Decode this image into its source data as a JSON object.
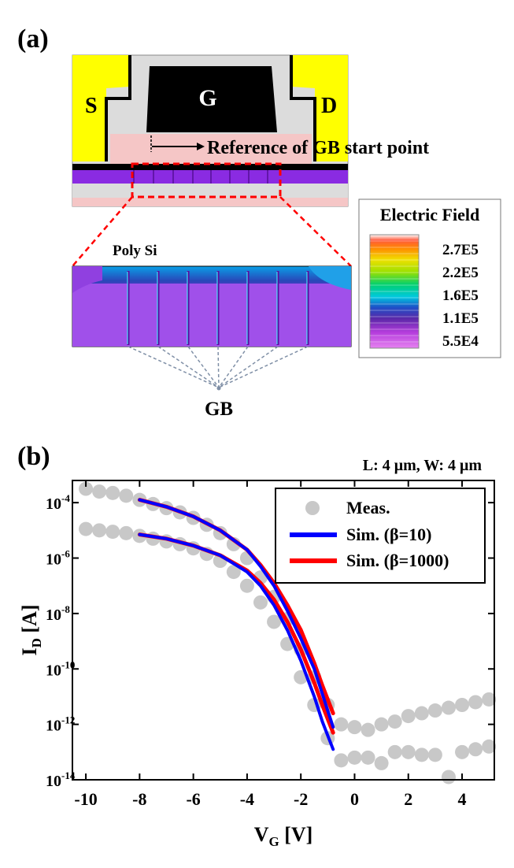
{
  "panel_a": {
    "label": "(a)",
    "source_label": "S",
    "gate_label": "G",
    "drain_label": "D",
    "reference_label": "Reference of GB start point",
    "poly_label": "Poly Si",
    "gb_label": "GB",
    "colorbar": {
      "title": "Electric Field",
      "ticks": [
        "2.7E5",
        "2.2E5",
        "1.6E5",
        "1.1E5",
        "5.5E4"
      ]
    },
    "colors": {
      "metal": "#ffff00",
      "oxide": "#dcdcdc",
      "gate": "#000000",
      "poly": "#f5c6c6",
      "channel": "#8a2be2",
      "zoom_box": "#ff0000",
      "gb_lines": "#7f8fa6"
    }
  },
  "panel_b": {
    "label": "(b)",
    "dimension_note": "L: 4 μm, W: 4 μm",
    "legend": {
      "meas": "Meas.",
      "sim_beta10": "Sim. (β=10)",
      "sim_beta1000": "Sim. (β=1000)"
    },
    "ylabel_main": "I",
    "ylabel_sub": "D",
    "ylabel_unit": " [A]",
    "xlabel_main": "V",
    "xlabel_sub": "G",
    "xlabel_unit": " [V]"
  },
  "chart_data": {
    "type": "scatter",
    "x_scale": "linear",
    "y_scale": "log",
    "xlim": [
      -10.5,
      5.2
    ],
    "ylim_log10": [
      -14,
      -3.2
    ],
    "x_ticks": [
      -10,
      -8,
      -6,
      -4,
      -2,
      0,
      2,
      4
    ],
    "x_tick_labels": [
      "-10",
      "-8",
      "-6",
      "-4",
      "-2",
      "0",
      "2",
      "4"
    ],
    "y_ticks_log10": [
      -4,
      -6,
      -8,
      -10,
      -12,
      -14
    ],
    "y_tick_labels": [
      "-4",
      "-6",
      "-8",
      "-10",
      "-12",
      "-14"
    ],
    "y_tick_base": "10",
    "legend_position": "top-right",
    "colors": {
      "meas": "#c8c8c8",
      "sim_beta10": "#0000ff",
      "sim_beta1000": "#ff0000"
    },
    "series": [
      {
        "name": "Meas.",
        "kind": "scatter",
        "x": [
          -10,
          -9.5,
          -9,
          -8.5,
          -8,
          -7.5,
          -7,
          -6.5,
          -6,
          -5.5,
          -5,
          -4.5,
          -4,
          -3.5,
          -3,
          -2.5,
          -2,
          -1.5,
          -1,
          -0.5,
          0,
          0.5,
          1,
          1.5,
          2,
          2.5,
          3,
          3.5,
          4,
          4.5,
          5
        ],
        "log10_y": [
          -3.5,
          -3.6,
          -3.65,
          -3.75,
          -3.9,
          -4.05,
          -4.2,
          -4.35,
          -4.55,
          -4.8,
          -5.1,
          -5.5,
          -6.0,
          -6.7,
          -7.4,
          -8.2,
          -9.3,
          -10.3,
          -11.3,
          -12.0,
          -12.1,
          -12.2,
          -12.0,
          -11.9,
          -11.7,
          -11.6,
          -11.5,
          -11.4,
          -11.3,
          -11.2,
          -11.1
        ]
      },
      {
        "name": "Meas.",
        "kind": "scatter",
        "x": [
          -10,
          -9.5,
          -9,
          -8.5,
          -8,
          -7.5,
          -7,
          -6.5,
          -6,
          -5.5,
          -5,
          -4.5,
          -4,
          -3.5,
          -3,
          -2.5,
          -2,
          -1.5,
          -1,
          -0.5,
          0,
          0.5,
          1,
          1.5,
          2,
          2.5,
          3,
          3.5,
          4,
          4.5,
          5
        ],
        "log10_y": [
          -4.95,
          -5.0,
          -5.05,
          -5.1,
          -5.2,
          -5.3,
          -5.4,
          -5.5,
          -5.65,
          -5.85,
          -6.1,
          -6.5,
          -7.0,
          -7.6,
          -8.3,
          -9.1,
          -10.3,
          -11.3,
          -12.5,
          -13.3,
          -13.2,
          -13.2,
          -13.4,
          -13.0,
          -13.0,
          -13.1,
          -13.1,
          -13.9,
          -13.0,
          -12.9,
          -12.8
        ]
      },
      {
        "name": "Sim. (β=10)",
        "kind": "line",
        "x": [
          -8,
          -7,
          -6,
          -5,
          -4,
          -3.5,
          -3,
          -2.5,
          -2,
          -1.5,
          -1.2,
          -1.0,
          -0.8
        ],
        "log10_y": [
          -3.9,
          -4.15,
          -4.5,
          -5.0,
          -5.7,
          -6.3,
          -7.0,
          -7.9,
          -8.9,
          -10.0,
          -10.9,
          -11.5,
          -12.1
        ]
      },
      {
        "name": "Sim. (β=10)",
        "kind": "line",
        "x": [
          -8,
          -7,
          -6,
          -5,
          -4,
          -3.5,
          -3,
          -2.5,
          -2,
          -1.5,
          -1.2,
          -1.0,
          -0.8
        ],
        "log10_y": [
          -5.15,
          -5.3,
          -5.55,
          -5.9,
          -6.5,
          -7.0,
          -7.7,
          -8.6,
          -9.7,
          -11.0,
          -11.9,
          -12.4,
          -12.9
        ]
      },
      {
        "name": "Sim. (β=1000)",
        "kind": "line",
        "x": [
          -8,
          -7,
          -6,
          -5,
          -4,
          -3.5,
          -3,
          -2.5,
          -2,
          -1.5,
          -1.2,
          -1.0,
          -0.8
        ],
        "log10_y": [
          -3.9,
          -4.15,
          -4.5,
          -5.0,
          -5.7,
          -6.25,
          -6.9,
          -7.7,
          -8.6,
          -9.8,
          -10.6,
          -11.1,
          -11.6
        ]
      },
      {
        "name": "Sim. (β=1000)",
        "kind": "line",
        "x": [
          -8,
          -7,
          -6,
          -5,
          -4,
          -3.5,
          -3,
          -2.5,
          -2,
          -1.5,
          -1.2,
          -1.0,
          -0.8
        ],
        "log10_y": [
          -5.15,
          -5.3,
          -5.55,
          -5.9,
          -6.45,
          -6.9,
          -7.5,
          -8.3,
          -9.3,
          -10.5,
          -11.3,
          -11.8,
          -12.3
        ]
      }
    ]
  }
}
